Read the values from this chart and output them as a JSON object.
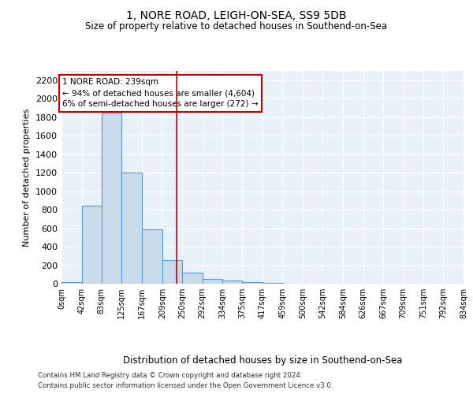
{
  "title1": "1, NORE ROAD, LEIGH-ON-SEA, SS9 5DB",
  "title2": "Size of property relative to detached houses in Southend-on-Sea",
  "xlabel": "Distribution of detached houses by size in Southend-on-Sea",
  "ylabel": "Number of detached properties",
  "bar_values": [
    20,
    840,
    1850,
    1200,
    590,
    255,
    120,
    50,
    35,
    20,
    10,
    0,
    0,
    0,
    0,
    0,
    0,
    0,
    0,
    0
  ],
  "bin_edges": [
    0,
    42,
    83,
    125,
    167,
    209,
    250,
    292,
    334,
    375,
    417,
    459,
    500,
    542,
    584,
    626,
    667,
    709,
    751,
    792,
    834
  ],
  "tick_labels": [
    "0sqm",
    "42sqm",
    "83sqm",
    "125sqm",
    "167sqm",
    "209sqm",
    "250sqm",
    "292sqm",
    "334sqm",
    "375sqm",
    "417sqm",
    "459sqm",
    "500sqm",
    "542sqm",
    "584sqm",
    "626sqm",
    "667sqm",
    "709sqm",
    "751sqm",
    "792sqm",
    "834sqm"
  ],
  "bar_color": "#c9daea",
  "bar_edge_color": "#5b9bd5",
  "vline_x": 239,
  "vline_color": "#cc0000",
  "ylim": [
    0,
    2300
  ],
  "yticks": [
    0,
    200,
    400,
    600,
    800,
    1000,
    1200,
    1400,
    1600,
    1800,
    2000,
    2200
  ],
  "annotation_title": "1 NORE ROAD: 239sqm",
  "annotation_line1": "← 94% of detached houses are smaller (4,604)",
  "annotation_line2": "6% of semi-detached houses are larger (272) →",
  "annotation_box_color": "#ffffff",
  "annotation_border_color": "#cc0000",
  "footnote1": "Contains HM Land Registry data © Crown copyright and database right 2024.",
  "footnote2": "Contains public sector information licensed under the Open Government Licence v3.0.",
  "bg_color": "#e8f0f8",
  "fig_bg_color": "#ffffff"
}
